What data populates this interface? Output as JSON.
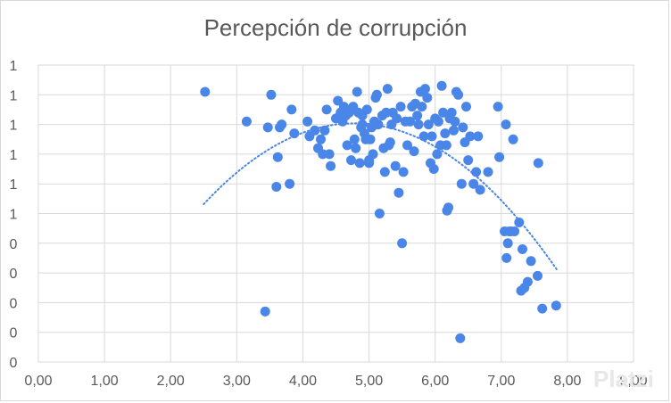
{
  "chart_data": {
    "type": "scatter",
    "title": "Percepción de corrupción",
    "xlabel": "",
    "ylabel": "",
    "xlim": [
      0,
      9
    ],
    "ylim": [
      0,
      1
    ],
    "grid": true,
    "legend": "none",
    "x_tick_labels": [
      "0,00",
      "1,00",
      "2,00",
      "3,00",
      "4,00",
      "5,00",
      "6,00",
      "7,00",
      "8,00",
      "9,00"
    ],
    "y_tick_labels": [
      "0",
      "0",
      "0",
      "0",
      "0",
      "1",
      "1",
      "1",
      "1",
      "1",
      "1"
    ],
    "marker_color": "#4a86e8",
    "trendline": {
      "type": "polynomial",
      "color": "#4a86e8",
      "style": "dotted",
      "x_range": [
        2.5,
        7.85
      ]
    },
    "series": [
      {
        "x": [
          2.52,
          3.15,
          3.43,
          3.47,
          3.52,
          3.6,
          3.62,
          3.65,
          3.68,
          3.8,
          3.83,
          3.87,
          4.07,
          4.1,
          4.18,
          4.23,
          4.27,
          4.3,
          4.33,
          4.36,
          4.4,
          4.42,
          4.5,
          4.53,
          4.57,
          4.6,
          4.6,
          4.62,
          4.65,
          4.67,
          4.7,
          4.73,
          4.76,
          4.78,
          4.8,
          4.82,
          4.84,
          4.86,
          4.88,
          4.9,
          4.9,
          4.93,
          4.95,
          4.97,
          5.0,
          5.0,
          5.02,
          5.04,
          5.06,
          5.08,
          5.1,
          5.12,
          5.14,
          5.16,
          5.2,
          5.22,
          5.24,
          5.26,
          5.28,
          5.3,
          5.32,
          5.34,
          5.36,
          5.4,
          5.42,
          5.45,
          5.48,
          5.5,
          5.52,
          5.55,
          5.58,
          5.62,
          5.65,
          5.68,
          5.7,
          5.73,
          5.75,
          5.78,
          5.8,
          5.83,
          5.85,
          5.88,
          5.9,
          5.93,
          5.95,
          5.98,
          6.0,
          6.03,
          6.05,
          6.08,
          6.1,
          6.12,
          6.15,
          6.17,
          6.18,
          6.2,
          6.22,
          6.25,
          6.28,
          6.3,
          6.32,
          6.35,
          6.38,
          6.4,
          6.42,
          6.45,
          6.47,
          6.5,
          6.53,
          6.58,
          6.62,
          6.65,
          6.68,
          6.8,
          6.95,
          6.97,
          7.05,
          7.07,
          7.08,
          7.1,
          7.12,
          7.15,
          7.18,
          7.2,
          7.27,
          7.3,
          7.32,
          7.35,
          7.4,
          7.45,
          7.55,
          7.56,
          7.62,
          7.83
        ],
        "y": [
          0.91,
          0.81,
          0.17,
          0.79,
          0.9,
          0.59,
          0.69,
          0.79,
          0.8,
          0.6,
          0.85,
          0.77,
          0.81,
          0.76,
          0.78,
          0.72,
          0.75,
          0.7,
          0.78,
          0.85,
          0.7,
          0.66,
          0.82,
          0.88,
          0.84,
          0.82,
          0.81,
          0.86,
          0.83,
          0.73,
          0.84,
          0.68,
          0.86,
          0.75,
          0.72,
          0.91,
          0.84,
          0.67,
          0.79,
          0.8,
          0.83,
          0.77,
          0.75,
          0.85,
          0.68,
          0.67,
          0.75,
          0.79,
          0.7,
          0.81,
          0.89,
          0.9,
          0.8,
          0.5,
          0.83,
          0.72,
          0.64,
          0.84,
          0.92,
          0.73,
          0.74,
          0.8,
          0.84,
          0.66,
          0.82,
          0.57,
          0.86,
          0.4,
          0.64,
          0.81,
          0.73,
          0.81,
          0.86,
          0.71,
          0.87,
          0.83,
          0.8,
          0.91,
          0.86,
          0.76,
          0.92,
          0.89,
          0.8,
          0.67,
          0.76,
          0.65,
          0.82,
          0.7,
          0.81,
          0.73,
          0.93,
          0.84,
          0.77,
          0.73,
          0.51,
          0.52,
          0.82,
          0.84,
          0.78,
          0.81,
          0.91,
          0.9,
          0.08,
          0.6,
          0.79,
          0.74,
          0.86,
          0.68,
          0.76,
          0.6,
          0.64,
          0.76,
          0.58,
          0.64,
          0.86,
          0.69,
          0.44,
          0.8,
          0.35,
          0.4,
          0.44,
          0.44,
          0.75,
          0.44,
          0.47,
          0.24,
          0.38,
          0.25,
          0.27,
          0.34,
          0.29,
          0.67,
          0.18,
          0.19
        ]
      }
    ]
  }
}
